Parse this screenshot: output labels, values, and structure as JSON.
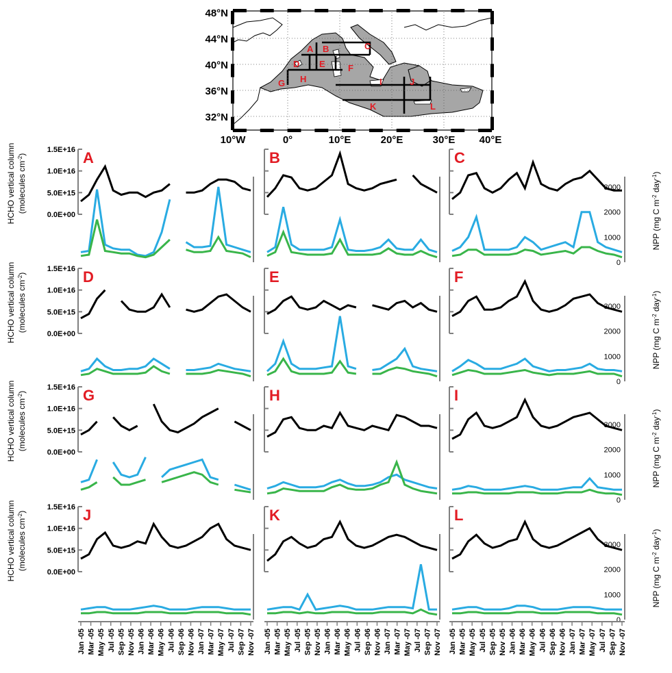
{
  "map": {
    "lat_labels": [
      "48°N",
      "44°N",
      "40°N",
      "36°N",
      "32°N"
    ],
    "lon_labels": [
      "10°W",
      "0°",
      "10°E",
      "20°E",
      "30°E",
      "40°E"
    ],
    "regions": [
      "A",
      "B",
      "C",
      "D",
      "E",
      "F",
      "G",
      "H",
      "I",
      "J",
      "K",
      "L"
    ],
    "land_color": "#ffffff",
    "sea_color": "#a6a6a6"
  },
  "y_left_label_line1": "HCHO vertical column",
  "y_left_label_line2": "(molecules cm",
  "y_left_label_sup": "-2",
  "y_left_label_end": ")",
  "y_right_label_pre": "NPP (mg C m",
  "y_right_label_sup1": "-2",
  "y_right_label_mid": " day",
  "y_right_label_sup2": "-1",
  "y_right_label_end": ")",
  "colors": {
    "hcho": "#000000",
    "npp_blue": "#29abe2",
    "npp_green": "#39b54a",
    "axis": "#808080",
    "label": "#e21b23"
  },
  "chart_data": {
    "type": "line",
    "x_ticks": [
      "Jan -05",
      "Mar -05",
      "May -05",
      "Jul -05",
      "Sep -05",
      "Nov -05",
      "Jan -06",
      "Mar -06",
      "May -06",
      "Jul -06",
      "Sep -06",
      "Nov -06",
      "Jan -07",
      "Mar -07",
      "May -07",
      "Jul -07",
      "Sep -07",
      "Nov -07"
    ],
    "x_range": [
      "2005-01",
      "2007-12"
    ],
    "y_left_ticks": [
      "1.5E+16",
      "1.0E+16",
      "5.0E+15",
      "0.0E+00"
    ],
    "y_left_range": [
      0,
      1.5e+16
    ],
    "y_right_ticks": [
      "3000",
      "2000",
      "1000",
      "0"
    ],
    "y_right_range": [
      0,
      3000
    ],
    "panels": [
      {
        "label": "A",
        "hcho": [
          0.3,
          0.45,
          0.8,
          1.1,
          0.55,
          0.45,
          0.5,
          0.5,
          0.4,
          0.5,
          0.55,
          0.7,
          null,
          0.5,
          0.5,
          0.55,
          0.7,
          0.8,
          0.8,
          0.75,
          0.6,
          0.55
        ],
        "npp_blue": [
          400,
          450,
          2900,
          700,
          550,
          500,
          500,
          300,
          250,
          400,
          1200,
          2500,
          null,
          800,
          600,
          600,
          650,
          3000,
          700,
          600,
          500,
          400
        ],
        "npp_green": [
          250,
          300,
          1700,
          450,
          400,
          350,
          350,
          250,
          200,
          300,
          600,
          900,
          null,
          500,
          400,
          400,
          450,
          1000,
          450,
          400,
          350,
          200
        ]
      },
      {
        "label": "B",
        "hcho": [
          0.4,
          0.6,
          0.9,
          0.85,
          0.6,
          0.55,
          0.6,
          0.75,
          0.9,
          1.4,
          0.7,
          0.6,
          0.55,
          0.6,
          0.7,
          0.75,
          0.8,
          null,
          0.9,
          0.7,
          0.6,
          0.5
        ],
        "npp_blue": [
          400,
          600,
          2200,
          700,
          500,
          500,
          500,
          500,
          600,
          1700,
          500,
          450,
          450,
          500,
          600,
          900,
          550,
          500,
          500,
          900,
          500,
          400
        ],
        "npp_green": [
          250,
          400,
          1200,
          400,
          350,
          300,
          300,
          300,
          350,
          900,
          300,
          300,
          300,
          300,
          350,
          550,
          350,
          300,
          300,
          450,
          300,
          200
        ]
      },
      {
        "label": "C",
        "hcho": [
          0.35,
          0.5,
          0.9,
          0.95,
          0.6,
          0.5,
          0.6,
          0.8,
          0.95,
          0.6,
          1.2,
          0.7,
          0.6,
          0.55,
          0.7,
          0.8,
          0.85,
          1.0,
          0.8,
          0.6,
          0.55,
          0.55
        ],
        "npp_blue": [
          450,
          600,
          1000,
          1800,
          500,
          500,
          500,
          500,
          600,
          1000,
          800,
          500,
          600,
          700,
          800,
          600,
          2000,
          2000,
          800,
          600,
          500,
          400
        ],
        "npp_green": [
          250,
          300,
          500,
          500,
          300,
          300,
          300,
          300,
          350,
          500,
          450,
          300,
          350,
          400,
          450,
          350,
          600,
          600,
          450,
          350,
          300,
          200
        ]
      },
      {
        "label": "D",
        "hcho": [
          0.35,
          0.45,
          0.8,
          1.0,
          null,
          0.75,
          0.55,
          0.5,
          0.5,
          0.6,
          0.9,
          0.6,
          null,
          0.55,
          0.5,
          0.55,
          0.7,
          0.85,
          0.9,
          0.75,
          0.6,
          0.5
        ],
        "npp_blue": [
          400,
          500,
          900,
          600,
          450,
          450,
          500,
          500,
          600,
          900,
          700,
          500,
          null,
          450,
          450,
          500,
          550,
          700,
          600,
          500,
          450,
          400
        ],
        "npp_green": [
          250,
          300,
          500,
          400,
          300,
          300,
          300,
          300,
          350,
          600,
          400,
          300,
          null,
          300,
          300,
          300,
          350,
          450,
          400,
          350,
          300,
          200
        ]
      },
      {
        "label": "E",
        "hcho": [
          0.45,
          0.55,
          0.75,
          0.85,
          0.6,
          0.55,
          0.6,
          0.75,
          0.65,
          0.55,
          0.65,
          0.6,
          null,
          0.65,
          0.6,
          0.55,
          0.7,
          0.75,
          0.6,
          0.7,
          0.55,
          0.5
        ],
        "npp_blue": [
          400,
          700,
          1600,
          700,
          500,
          500,
          500,
          550,
          600,
          2600,
          600,
          500,
          null,
          450,
          500,
          700,
          900,
          1300,
          600,
          500,
          450,
          400
        ],
        "npp_green": [
          250,
          400,
          900,
          400,
          300,
          300,
          300,
          300,
          350,
          800,
          350,
          300,
          null,
          300,
          300,
          450,
          550,
          500,
          400,
          350,
          300,
          200
        ]
      },
      {
        "label": "F",
        "hcho": [
          0.4,
          0.5,
          0.75,
          0.85,
          0.55,
          0.55,
          0.6,
          0.75,
          0.85,
          1.2,
          0.75,
          0.55,
          0.5,
          0.55,
          0.65,
          0.8,
          0.85,
          0.9,
          0.7,
          0.6,
          0.55,
          0.5
        ],
        "npp_blue": [
          400,
          600,
          850,
          700,
          500,
          500,
          500,
          600,
          700,
          900,
          600,
          500,
          400,
          450,
          450,
          500,
          550,
          700,
          500,
          450,
          450,
          400
        ],
        "npp_green": [
          250,
          350,
          450,
          400,
          300,
          300,
          300,
          350,
          400,
          450,
          350,
          300,
          250,
          300,
          300,
          300,
          350,
          400,
          300,
          300,
          300,
          200
        ]
      },
      {
        "label": "G",
        "hcho": [
          0.4,
          0.5,
          0.7,
          null,
          0.8,
          0.6,
          0.5,
          0.6,
          null,
          1.1,
          0.7,
          0.5,
          0.45,
          0.55,
          0.65,
          0.8,
          0.9,
          1.0,
          null,
          0.7,
          0.6,
          0.5
        ],
        "npp_blue": [
          700,
          800,
          1600,
          null,
          1500,
          1000,
          900,
          1000,
          1700,
          null,
          900,
          1200,
          1300,
          1400,
          1500,
          1600,
          900,
          800,
          null,
          600,
          500,
          400
        ],
        "npp_green": [
          400,
          500,
          700,
          null,
          900,
          600,
          600,
          700,
          800,
          null,
          700,
          800,
          900,
          1000,
          1100,
          1000,
          700,
          600,
          null,
          400,
          350,
          300
        ]
      },
      {
        "label": "H",
        "hcho": [
          0.35,
          0.45,
          0.75,
          0.8,
          0.55,
          0.5,
          0.5,
          0.6,
          0.55,
          0.9,
          0.6,
          0.55,
          0.5,
          0.6,
          0.55,
          0.5,
          0.85,
          0.8,
          0.7,
          0.6,
          0.6,
          0.55
        ],
        "npp_blue": [
          450,
          550,
          700,
          600,
          500,
          500,
          500,
          550,
          700,
          800,
          650,
          550,
          550,
          600,
          700,
          900,
          1000,
          800,
          700,
          600,
          500,
          450
        ],
        "npp_green": [
          250,
          300,
          450,
          400,
          350,
          350,
          350,
          350,
          500,
          600,
          450,
          400,
          400,
          450,
          600,
          700,
          1500,
          600,
          450,
          350,
          300,
          250
        ]
      },
      {
        "label": "I",
        "hcho": [
          0.3,
          0.4,
          0.75,
          0.9,
          0.6,
          0.55,
          0.6,
          0.7,
          0.8,
          1.2,
          0.8,
          0.6,
          0.55,
          0.6,
          0.7,
          0.8,
          0.85,
          0.9,
          0.75,
          0.6,
          0.55,
          0.5
        ],
        "npp_blue": [
          400,
          450,
          550,
          500,
          400,
          400,
          400,
          450,
          500,
          550,
          500,
          400,
          400,
          400,
          450,
          500,
          500,
          850,
          500,
          450,
          400,
          400
        ],
        "npp_green": [
          250,
          250,
          300,
          300,
          250,
          250,
          250,
          250,
          300,
          300,
          300,
          250,
          250,
          250,
          300,
          300,
          300,
          400,
          300,
          250,
          250,
          200
        ]
      },
      {
        "label": "J",
        "hcho": [
          0.3,
          0.4,
          0.75,
          0.9,
          0.6,
          0.55,
          0.6,
          0.7,
          0.65,
          1.1,
          0.8,
          0.6,
          0.55,
          0.6,
          0.7,
          0.8,
          1.0,
          1.1,
          0.75,
          0.6,
          0.55,
          0.5
        ],
        "npp_blue": [
          400,
          450,
          500,
          500,
          400,
          400,
          400,
          450,
          500,
          550,
          500,
          400,
          400,
          400,
          450,
          500,
          500,
          500,
          450,
          400,
          400,
          400
        ],
        "npp_green": [
          250,
          250,
          300,
          300,
          250,
          250,
          250,
          250,
          300,
          300,
          300,
          250,
          250,
          250,
          300,
          300,
          300,
          300,
          250,
          250,
          250,
          200
        ]
      },
      {
        "label": "K",
        "hcho": [
          0.25,
          0.4,
          0.7,
          0.8,
          0.65,
          0.55,
          0.6,
          0.75,
          0.8,
          1.15,
          0.75,
          0.6,
          0.55,
          0.6,
          0.7,
          0.8,
          0.85,
          0.8,
          0.7,
          0.6,
          0.55,
          0.5
        ],
        "npp_blue": [
          400,
          450,
          500,
          500,
          400,
          1000,
          400,
          450,
          500,
          550,
          500,
          400,
          400,
          400,
          450,
          500,
          500,
          500,
          450,
          2200,
          400,
          400
        ],
        "npp_green": [
          250,
          250,
          300,
          300,
          250,
          300,
          250,
          250,
          300,
          300,
          300,
          250,
          250,
          250,
          300,
          300,
          300,
          300,
          250,
          400,
          250,
          200
        ]
      },
      {
        "label": "L",
        "hcho": [
          0.3,
          0.4,
          0.7,
          0.85,
          0.65,
          0.55,
          0.6,
          0.7,
          0.75,
          1.15,
          0.75,
          0.6,
          0.55,
          0.6,
          0.7,
          0.8,
          0.9,
          1.0,
          0.75,
          0.6,
          0.55,
          0.5
        ],
        "npp_blue": [
          400,
          450,
          500,
          500,
          400,
          400,
          400,
          450,
          550,
          550,
          500,
          400,
          400,
          400,
          450,
          500,
          500,
          500,
          450,
          400,
          400,
          400
        ],
        "npp_green": [
          250,
          250,
          300,
          300,
          250,
          250,
          250,
          250,
          300,
          300,
          300,
          250,
          250,
          250,
          300,
          300,
          300,
          300,
          250,
          250,
          250,
          200
        ]
      }
    ],
    "hcho_units_note": "hcho values in units of 1E+16 molecules cm-2",
    "grid": false
  }
}
